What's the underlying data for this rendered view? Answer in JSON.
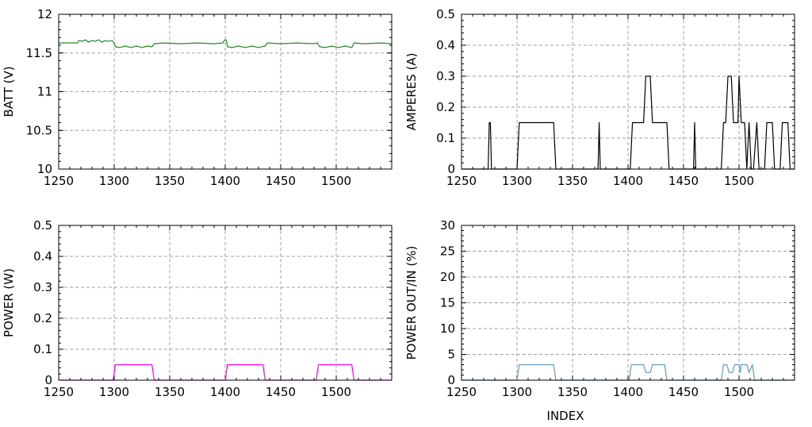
{
  "chart_data": [
    {
      "type": "line",
      "xlabel": "",
      "ylabel": "BATT (V)",
      "xlim": [
        1250,
        1550
      ],
      "ylim": [
        10,
        12
      ],
      "xticks": [
        1250,
        1300,
        1350,
        1400,
        1450,
        1500
      ],
      "yticks": [
        10,
        10.5,
        11,
        11.5,
        12
      ],
      "ytick_labels": [
        "10",
        "10.5",
        "11",
        "11.5",
        "12"
      ],
      "grid": true,
      "color": "#228B22",
      "series": [
        {
          "x": [
            1250,
            1267,
            1268,
            1271,
            1274,
            1277,
            1280,
            1283,
            1286,
            1289,
            1292,
            1295,
            1298,
            1300,
            1301,
            1305,
            1310,
            1315,
            1320,
            1325,
            1330,
            1334,
            1336,
            1345,
            1360,
            1375,
            1390,
            1398,
            1399,
            1401,
            1402,
            1406,
            1412,
            1418,
            1424,
            1430,
            1436,
            1438,
            1450,
            1465,
            1480,
            1483,
            1485,
            1490,
            1496,
            1502,
            1508,
            1514,
            1516,
            1525,
            1540,
            1550
          ],
          "y": [
            11.63,
            11.63,
            11.66,
            11.65,
            11.67,
            11.64,
            11.66,
            11.65,
            11.67,
            11.64,
            11.66,
            11.65,
            11.66,
            11.63,
            11.58,
            11.57,
            11.59,
            11.57,
            11.59,
            11.57,
            11.59,
            11.58,
            11.62,
            11.63,
            11.62,
            11.63,
            11.62,
            11.63,
            11.66,
            11.67,
            11.58,
            11.57,
            11.59,
            11.57,
            11.59,
            11.57,
            11.59,
            11.63,
            11.62,
            11.63,
            11.62,
            11.63,
            11.58,
            11.57,
            11.59,
            11.57,
            11.59,
            11.57,
            11.63,
            11.62,
            11.63,
            11.62
          ]
        }
      ]
    },
    {
      "type": "line",
      "xlabel": "",
      "ylabel": "AMPERES (A)",
      "xlim": [
        1250,
        1550
      ],
      "ylim": [
        0,
        0.5
      ],
      "xticks": [
        1250,
        1300,
        1350,
        1400,
        1450,
        1500
      ],
      "yticks": [
        0,
        0.1,
        0.2,
        0.3,
        0.4,
        0.5
      ],
      "ytick_labels": [
        "0",
        "0.1",
        "0.2",
        "0.3",
        "0.4",
        "0.5"
      ],
      "grid": true,
      "color": "#000000",
      "series": [
        {
          "x": [
            1250,
            1274,
            1275,
            1276,
            1277,
            1300,
            1302,
            1333,
            1335,
            1373,
            1374,
            1375,
            1402,
            1404,
            1414,
            1416,
            1420,
            1422,
            1435,
            1437,
            1459,
            1460,
            1461,
            1484,
            1486,
            1488,
            1490,
            1493,
            1495,
            1499,
            1500,
            1502,
            1505,
            1507,
            1509,
            1511,
            1513,
            1516,
            1518,
            1523,
            1525,
            1530,
            1532,
            1537,
            1539,
            1544,
            1546,
            1550
          ],
          "y": [
            0,
            0,
            0.15,
            0.15,
            0,
            0,
            0.15,
            0.15,
            0,
            0,
            0.15,
            0,
            0,
            0.15,
            0.15,
            0.3,
            0.3,
            0.15,
            0.15,
            0,
            0,
            0.15,
            0,
            0,
            0.15,
            0.15,
            0.3,
            0.3,
            0.15,
            0.15,
            0.3,
            0.15,
            0.15,
            0,
            0.15,
            0,
            0,
            0.15,
            0,
            0,
            0.15,
            0.15,
            0,
            0,
            0.15,
            0.15,
            0,
            0
          ]
        }
      ]
    },
    {
      "type": "line",
      "xlabel": "",
      "ylabel": "POWER (W)",
      "xlim": [
        1250,
        1550
      ],
      "ylim": [
        0,
        0.5
      ],
      "xticks": [
        1250,
        1300,
        1350,
        1400,
        1450,
        1500
      ],
      "yticks": [
        0,
        0.1,
        0.2,
        0.3,
        0.4,
        0.5
      ],
      "ytick_labels": [
        "0",
        "0.1",
        "0.2",
        "0.3",
        "0.4",
        "0.5"
      ],
      "grid": true,
      "color": "#FF00FF",
      "series": [
        {
          "x": [
            1250,
            1299,
            1301,
            1334,
            1336,
            1400,
            1402,
            1434,
            1436,
            1482,
            1484,
            1514,
            1516,
            1550
          ],
          "y": [
            0,
            0,
            0.05,
            0.05,
            0,
            0,
            0.05,
            0.05,
            0,
            0,
            0.05,
            0.05,
            0,
            0
          ]
        }
      ]
    },
    {
      "type": "line",
      "xlabel": "INDEX",
      "ylabel": "POWER OUT/IN (%)",
      "xlim": [
        1250,
        1550
      ],
      "ylim": [
        0,
        30
      ],
      "xticks": [
        1250,
        1300,
        1350,
        1400,
        1450,
        1500
      ],
      "yticks": [
        0,
        5,
        10,
        15,
        20,
        25,
        30
      ],
      "ytick_labels": [
        "0",
        "5",
        "10",
        "15",
        "20",
        "25",
        "30"
      ],
      "grid": true,
      "color": "#6699CC",
      "series": [
        {
          "x": [
            1250,
            1300,
            1302,
            1333,
            1335,
            1401,
            1403,
            1414,
            1416,
            1420,
            1422,
            1433,
            1435,
            1484,
            1486,
            1489,
            1491,
            1494,
            1496,
            1500,
            1501,
            1502,
            1507,
            1509,
            1512,
            1514,
            1550
          ],
          "y": [
            0,
            0,
            3,
            3,
            0,
            0,
            3,
            3,
            1.5,
            1.5,
            3,
            3,
            0,
            0,
            3,
            3,
            1.5,
            1.5,
            3,
            3,
            1.5,
            3,
            3,
            1.5,
            3,
            0,
            0
          ]
        }
      ]
    }
  ]
}
